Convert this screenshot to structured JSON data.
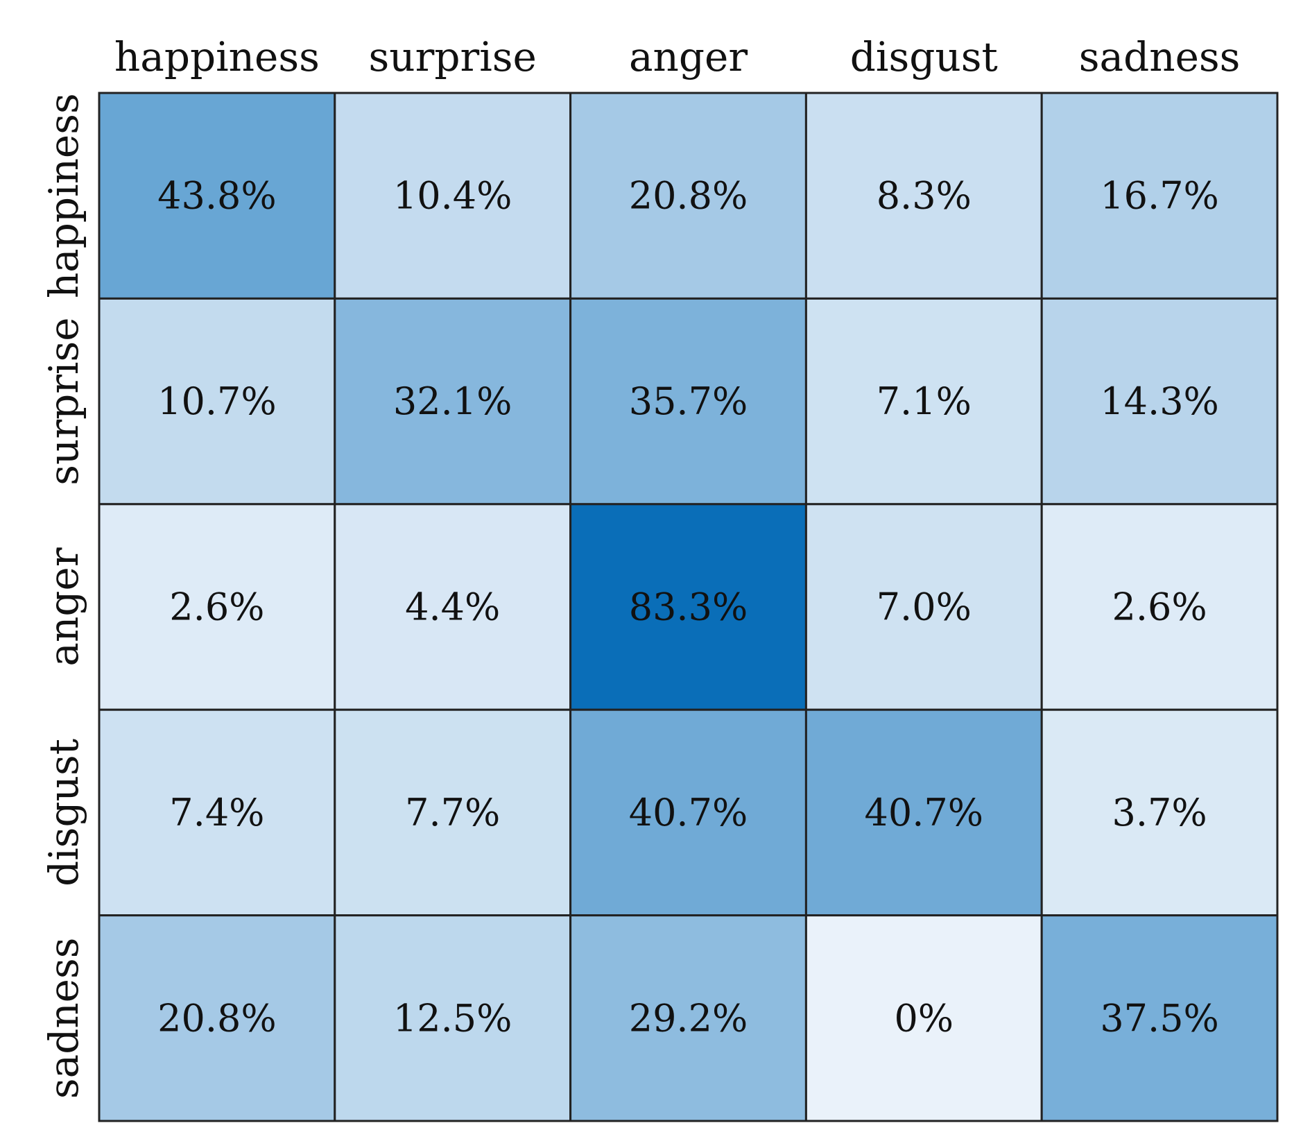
{
  "chart_data": {
    "type": "heatmap",
    "title": "",
    "xlabel": "",
    "ylabel": "",
    "x_categories": [
      "happiness",
      "surprise",
      "anger",
      "disgust",
      "sadness"
    ],
    "y_categories": [
      "happiness",
      "surprise",
      "anger",
      "disgust",
      "sadness"
    ],
    "x_axis_position": "top",
    "value_format": "percent",
    "values": [
      [
        43.8,
        10.4,
        20.8,
        8.3,
        16.7
      ],
      [
        10.7,
        32.1,
        35.7,
        7.1,
        14.3
      ],
      [
        2.6,
        4.4,
        83.3,
        7.0,
        2.6
      ],
      [
        7.4,
        7.7,
        40.7,
        40.7,
        3.7
      ],
      [
        20.8,
        12.5,
        29.2,
        0,
        37.5
      ]
    ],
    "labels": [
      [
        "43.8%",
        "10.4%",
        "20.8%",
        "8.3%",
        "16.7%"
      ],
      [
        "10.7%",
        "32.1%",
        "35.7%",
        "7.1%",
        "14.3%"
      ],
      [
        "2.6%",
        "4.4%",
        "83.3%",
        "7.0%",
        "2.6%"
      ],
      [
        "7.4%",
        "7.7%",
        "40.7%",
        "40.7%",
        "3.7%"
      ],
      [
        "20.8%",
        "12.5%",
        "29.2%",
        "0%",
        "37.5%"
      ]
    ],
    "colormap": {
      "low": "#eaf2fa",
      "high": "#0a6eb8"
    },
    "value_range": [
      0,
      83.3
    ]
  }
}
